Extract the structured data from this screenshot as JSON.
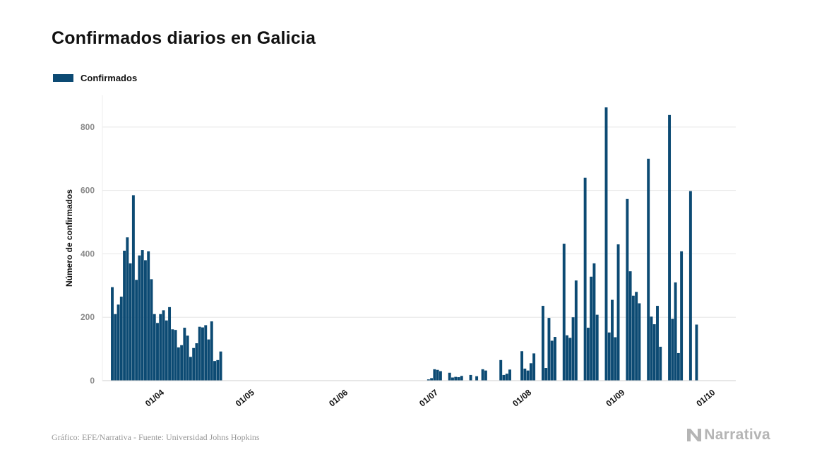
{
  "header": {
    "title": "Confirmados diarios en Galicia"
  },
  "footer": {
    "source": "Gráfico: EFE/Narrativa - Fuente: Universidad Johns Hopkins",
    "brand": "Narrativa"
  },
  "colors": {
    "bar": "#0c4a73",
    "grid": "#e6e6e6",
    "tick": "#8a8a8a",
    "brand": "#b5b5b5"
  },
  "chart_data": {
    "type": "bar",
    "title": "Confirmados diarios en Galicia",
    "ylabel": "Número de confirmados",
    "xlabel": "",
    "ylim": [
      0,
      900
    ],
    "yticks": [
      0,
      200,
      400,
      600,
      800
    ],
    "grid": "horizontal",
    "legend_position": "top-left",
    "x_start": "2020-03-09",
    "x_end": "2020-10-05",
    "xticks": [
      {
        "date": "2020-04-01",
        "label": "01/04"
      },
      {
        "date": "2020-05-01",
        "label": "01/05"
      },
      {
        "date": "2020-06-01",
        "label": "01/06"
      },
      {
        "date": "2020-07-01",
        "label": "01/07"
      },
      {
        "date": "2020-08-01",
        "label": "01/08"
      },
      {
        "date": "2020-09-01",
        "label": "01/09"
      },
      {
        "date": "2020-10-01",
        "label": "01/10"
      }
    ],
    "series": [
      {
        "name": "Confirmados",
        "points": [
          [
            "2020-03-17",
            295
          ],
          [
            "2020-03-18",
            210
          ],
          [
            "2020-03-19",
            240
          ],
          [
            "2020-03-20",
            265
          ],
          [
            "2020-03-21",
            410
          ],
          [
            "2020-03-22",
            452
          ],
          [
            "2020-03-23",
            370
          ],
          [
            "2020-03-24",
            585
          ],
          [
            "2020-03-25",
            318
          ],
          [
            "2020-03-26",
            395
          ],
          [
            "2020-03-27",
            412
          ],
          [
            "2020-03-28",
            380
          ],
          [
            "2020-03-29",
            408
          ],
          [
            "2020-03-30",
            320
          ],
          [
            "2020-03-31",
            210
          ],
          [
            "2020-04-01",
            182
          ],
          [
            "2020-04-02",
            210
          ],
          [
            "2020-04-03",
            222
          ],
          [
            "2020-04-04",
            190
          ],
          [
            "2020-04-05",
            232
          ],
          [
            "2020-04-06",
            162
          ],
          [
            "2020-04-07",
            160
          ],
          [
            "2020-04-08",
            105
          ],
          [
            "2020-04-09",
            112
          ],
          [
            "2020-04-10",
            167
          ],
          [
            "2020-04-11",
            142
          ],
          [
            "2020-04-12",
            75
          ],
          [
            "2020-04-13",
            103
          ],
          [
            "2020-04-14",
            118
          ],
          [
            "2020-04-15",
            170
          ],
          [
            "2020-04-16",
            168
          ],
          [
            "2020-04-17",
            175
          ],
          [
            "2020-04-18",
            130
          ],
          [
            "2020-04-19",
            187
          ],
          [
            "2020-04-20",
            62
          ],
          [
            "2020-04-21",
            65
          ],
          [
            "2020-04-22",
            92
          ],
          [
            "2020-06-30",
            4
          ],
          [
            "2020-07-01",
            8
          ],
          [
            "2020-07-02",
            36
          ],
          [
            "2020-07-03",
            34
          ],
          [
            "2020-07-04",
            30
          ],
          [
            "2020-07-07",
            25
          ],
          [
            "2020-07-08",
            10
          ],
          [
            "2020-07-09",
            12
          ],
          [
            "2020-07-10",
            11
          ],
          [
            "2020-07-11",
            15
          ],
          [
            "2020-07-14",
            18
          ],
          [
            "2020-07-16",
            14
          ],
          [
            "2020-07-18",
            36
          ],
          [
            "2020-07-19",
            32
          ],
          [
            "2020-07-24",
            65
          ],
          [
            "2020-07-25",
            18
          ],
          [
            "2020-07-26",
            22
          ],
          [
            "2020-07-27",
            35
          ],
          [
            "2020-07-31",
            93
          ],
          [
            "2020-08-01",
            38
          ],
          [
            "2020-08-02",
            32
          ],
          [
            "2020-08-03",
            55
          ],
          [
            "2020-08-04",
            86
          ],
          [
            "2020-08-07",
            236
          ],
          [
            "2020-08-08",
            40
          ],
          [
            "2020-08-09",
            198
          ],
          [
            "2020-08-10",
            126
          ],
          [
            "2020-08-11",
            138
          ],
          [
            "2020-08-14",
            432
          ],
          [
            "2020-08-15",
            143
          ],
          [
            "2020-08-16",
            135
          ],
          [
            "2020-08-17",
            200
          ],
          [
            "2020-08-18",
            316
          ],
          [
            "2020-08-21",
            640
          ],
          [
            "2020-08-22",
            167
          ],
          [
            "2020-08-23",
            328
          ],
          [
            "2020-08-24",
            370
          ],
          [
            "2020-08-25",
            208
          ],
          [
            "2020-08-28",
            862
          ],
          [
            "2020-08-29",
            152
          ],
          [
            "2020-08-30",
            255
          ],
          [
            "2020-08-31",
            137
          ],
          [
            "2020-09-01",
            430
          ],
          [
            "2020-09-04",
            573
          ],
          [
            "2020-09-05",
            345
          ],
          [
            "2020-09-06",
            268
          ],
          [
            "2020-09-07",
            280
          ],
          [
            "2020-09-08",
            244
          ],
          [
            "2020-09-11",
            700
          ],
          [
            "2020-09-12",
            202
          ],
          [
            "2020-09-13",
            178
          ],
          [
            "2020-09-14",
            236
          ],
          [
            "2020-09-15",
            107
          ],
          [
            "2020-09-18",
            838
          ],
          [
            "2020-09-19",
            195
          ],
          [
            "2020-09-20",
            310
          ],
          [
            "2020-09-21",
            87
          ],
          [
            "2020-09-22",
            408
          ],
          [
            "2020-09-25",
            598
          ],
          [
            "2020-09-27",
            177
          ]
        ]
      }
    ]
  }
}
